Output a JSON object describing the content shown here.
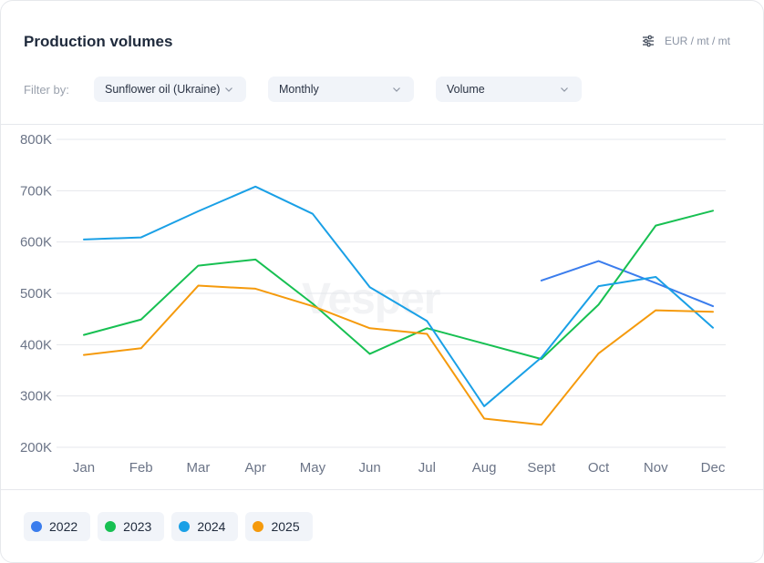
{
  "header": {
    "title": "Production volumes",
    "units_icon": "sliders-icon",
    "units_label": "EUR / mt / mt"
  },
  "filters": {
    "label": "Filter by:",
    "selects": [
      {
        "value": "Sunflower oil (Ukraine)",
        "icon": "chevron-down-icon"
      },
      {
        "value": "Monthly",
        "icon": "chevron-down-icon"
      },
      {
        "value": "Volume",
        "icon": "chevron-down-icon"
      }
    ]
  },
  "watermark": "Vesper",
  "chart_data": {
    "type": "line",
    "title": "Production volumes",
    "xlabel": "",
    "ylabel": "",
    "categories": [
      "Jan",
      "Feb",
      "Mar",
      "Apr",
      "May",
      "Jun",
      "Jul",
      "Aug",
      "Sept",
      "Oct",
      "Nov",
      "Dec"
    ],
    "ylim": [
      200000,
      800000
    ],
    "yticks": [
      200000,
      300000,
      400000,
      500000,
      600000,
      700000,
      800000
    ],
    "ytick_labels": [
      "200K",
      "300K",
      "400K",
      "500K",
      "600K",
      "700K",
      "800K"
    ],
    "grid": true,
    "legend_position": "bottom-left",
    "series": [
      {
        "name": "2022",
        "color": "#3b7ded",
        "values": [
          null,
          null,
          null,
          null,
          null,
          null,
          null,
          null,
          525000,
          563000,
          520000,
          475000
        ]
      },
      {
        "name": "2023",
        "color": "#17c052",
        "values": [
          419000,
          449000,
          554000,
          566000,
          480000,
          382000,
          432000,
          402000,
          372000,
          478000,
          632000,
          661000
        ]
      },
      {
        "name": "2024",
        "color": "#1aa0e6",
        "values": [
          605000,
          609000,
          660000,
          708000,
          655000,
          512000,
          446000,
          280000,
          375000,
          514000,
          532000,
          433000
        ]
      },
      {
        "name": "2025",
        "color": "#f59a0c",
        "values": [
          380000,
          393000,
          515000,
          509000,
          475000,
          432000,
          421000,
          256000,
          244000,
          383000,
          467000,
          464000
        ]
      }
    ]
  },
  "legend": {
    "items": [
      {
        "label": "2022",
        "color": "#3b7ded"
      },
      {
        "label": "2023",
        "color": "#17c052"
      },
      {
        "label": "2024",
        "color": "#1aa0e6"
      },
      {
        "label": "2025",
        "color": "#f59a0c"
      }
    ]
  }
}
